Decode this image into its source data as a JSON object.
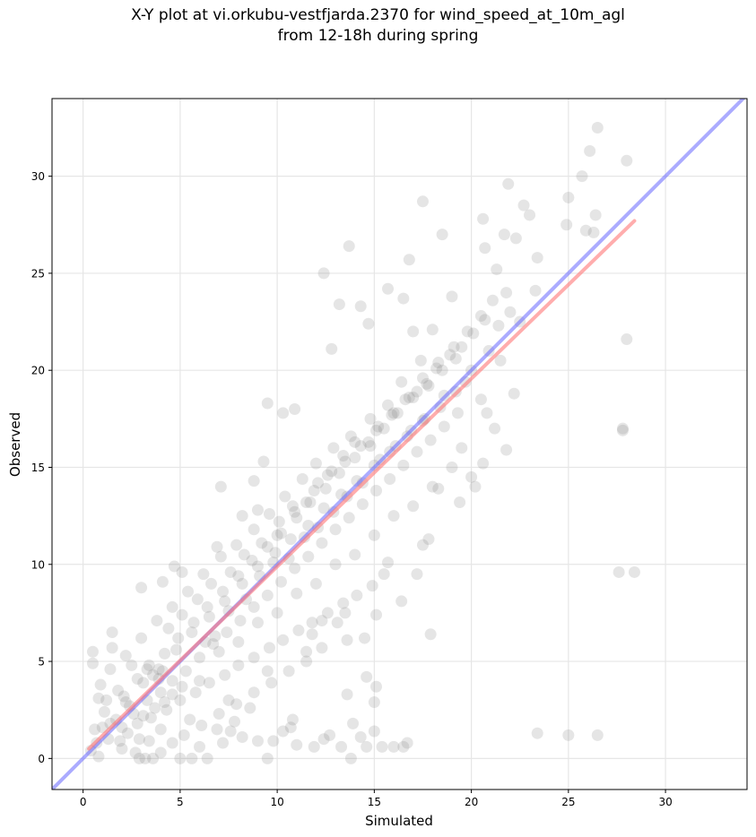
{
  "chart_data": {
    "type": "scatter",
    "title_lines": [
      "X-Y plot at vi.orkubu-vestfjarda.2370 for wind_speed_at_10m_agl",
      "from 12-18h during spring"
    ],
    "xlabel": "Simulated",
    "ylabel": "Observed",
    "xlim": [
      -1.6,
      34.2
    ],
    "ylim": [
      -1.6,
      34.0
    ],
    "xticks": [
      0,
      5,
      10,
      15,
      20,
      25,
      30
    ],
    "yticks": [
      0,
      5,
      10,
      15,
      20,
      25,
      30
    ],
    "grid": true,
    "legend": "none",
    "colors": {
      "points": "#7f7f7f",
      "identity_line": "#6666ff",
      "fit_line": "#ff7777"
    },
    "identity_line": {
      "slope": 1,
      "intercept": 0
    },
    "fit_line": {
      "x": [
        0.3,
        28.4
      ],
      "y": [
        0.5,
        27.7
      ]
    },
    "points": [
      [
        0.5,
        5.5
      ],
      [
        0.5,
        4.9
      ],
      [
        1.5,
        6.5
      ],
      [
        1.5,
        5.7
      ],
      [
        0.8,
        3.1
      ],
      [
        1.1,
        2.4
      ],
      [
        0.6,
        1.5
      ],
      [
        0.8,
        0.1
      ],
      [
        1.9,
        0.9
      ],
      [
        2.3,
        1.3
      ],
      [
        2.7,
        0.3
      ],
      [
        2.9,
        0.0
      ],
      [
        3.2,
        0.0
      ],
      [
        3.6,
        0.0
      ],
      [
        4.0,
        0.3
      ],
      [
        5.0,
        0.0
      ],
      [
        5.6,
        0.0
      ],
      [
        6.4,
        0.0
      ],
      [
        7.2,
        0.8
      ],
      [
        7.6,
        1.4
      ],
      [
        8.2,
        1.1
      ],
      [
        9.0,
        0.9
      ],
      [
        9.5,
        0.0
      ],
      [
        10.3,
        1.4
      ],
      [
        10.8,
        2.0
      ],
      [
        11.0,
        0.7
      ],
      [
        11.9,
        0.6
      ],
      [
        12.4,
        1.0
      ],
      [
        13.3,
        0.6
      ],
      [
        13.8,
        0.0
      ],
      [
        14.3,
        1.1
      ],
      [
        14.6,
        0.6
      ],
      [
        15.4,
        0.6
      ],
      [
        16.0,
        0.6
      ],
      [
        16.7,
        0.8
      ],
      [
        15.0,
        1.4
      ],
      [
        13.6,
        3.3
      ],
      [
        15.0,
        2.9
      ],
      [
        14.6,
        4.2
      ],
      [
        15.1,
        3.7
      ],
      [
        14.5,
        6.2
      ],
      [
        12.3,
        7.1
      ],
      [
        13.1,
        7.0
      ],
      [
        13.6,
        6.1
      ],
      [
        11.8,
        6.4
      ],
      [
        12.3,
        5.7
      ],
      [
        15.1,
        7.4
      ],
      [
        15.7,
        10.1
      ],
      [
        16.4,
        8.1
      ],
      [
        17.9,
        6.4
      ],
      [
        17.8,
        11.3
      ],
      [
        17.2,
        9.5
      ],
      [
        18.3,
        13.9
      ],
      [
        19.4,
        13.2
      ],
      [
        20.2,
        14.0
      ],
      [
        20.0,
        14.5
      ],
      [
        21.8,
        15.9
      ],
      [
        22.2,
        18.8
      ],
      [
        20.6,
        15.2
      ],
      [
        21.2,
        17.0
      ],
      [
        20.8,
        17.8
      ],
      [
        23.4,
        1.3
      ],
      [
        25.0,
        1.2
      ],
      [
        26.5,
        1.2
      ],
      [
        27.6,
        9.6
      ],
      [
        28.4,
        9.6
      ],
      [
        27.8,
        16.9
      ],
      [
        27.8,
        17.0
      ],
      [
        28.0,
        21.6
      ],
      [
        28.0,
        30.8
      ],
      [
        26.5,
        32.5
      ],
      [
        26.1,
        31.3
      ],
      [
        25.7,
        30.0
      ],
      [
        25.0,
        28.9
      ],
      [
        25.9,
        27.2
      ],
      [
        26.4,
        28.0
      ],
      [
        26.3,
        27.1
      ],
      [
        24.9,
        27.5
      ],
      [
        23.4,
        25.8
      ],
      [
        23.3,
        24.1
      ],
      [
        22.5,
        22.5
      ],
      [
        22.7,
        28.5
      ],
      [
        23.0,
        28.0
      ],
      [
        21.9,
        29.6
      ],
      [
        22.3,
        26.8
      ],
      [
        21.7,
        27.0
      ],
      [
        21.3,
        25.2
      ],
      [
        20.6,
        27.8
      ],
      [
        20.7,
        26.3
      ],
      [
        18.5,
        27.0
      ],
      [
        17.5,
        28.7
      ],
      [
        16.8,
        25.7
      ],
      [
        15.7,
        24.2
      ],
      [
        16.5,
        23.7
      ],
      [
        17.0,
        22.0
      ],
      [
        13.7,
        26.4
      ],
      [
        12.4,
        25.0
      ],
      [
        13.2,
        23.4
      ],
      [
        14.3,
        23.3
      ],
      [
        14.7,
        22.4
      ],
      [
        12.8,
        21.1
      ],
      [
        10.9,
        18.0
      ],
      [
        10.3,
        17.8
      ],
      [
        9.5,
        18.3
      ],
      [
        7.1,
        14.0
      ],
      [
        8.8,
        14.3
      ],
      [
        9.3,
        15.3
      ],
      [
        3.0,
        8.8
      ],
      [
        4.1,
        9.1
      ],
      [
        4.7,
        9.9
      ],
      [
        5.1,
        9.6
      ],
      [
        6.9,
        10.9
      ],
      [
        8.2,
        12.5
      ],
      [
        9.0,
        12.8
      ],
      [
        10.0,
        11.5
      ],
      [
        10.9,
        12.7
      ],
      [
        11.5,
        13.2
      ],
      [
        12.1,
        14.2
      ],
      [
        12.8,
        14.8
      ],
      [
        13.4,
        15.6
      ],
      [
        14.0,
        16.3
      ],
      [
        14.8,
        16.1
      ],
      [
        15.2,
        17.1
      ],
      [
        15.9,
        17.7
      ],
      [
        16.6,
        18.5
      ],
      [
        17.2,
        18.9
      ],
      [
        17.8,
        19.2
      ],
      [
        18.2,
        20.1
      ],
      [
        18.9,
        20.8
      ],
      [
        19.5,
        21.2
      ],
      [
        20.1,
        21.9
      ],
      [
        20.7,
        22.6
      ],
      [
        21.1,
        23.6
      ],
      [
        21.8,
        24.0
      ],
      [
        19.0,
        23.8
      ],
      [
        18.0,
        22.1
      ],
      [
        17.4,
        20.5
      ],
      [
        16.4,
        19.4
      ],
      [
        15.7,
        18.2
      ],
      [
        14.8,
        17.5
      ],
      [
        13.8,
        16.6
      ],
      [
        12.9,
        16.0
      ],
      [
        12.0,
        15.2
      ],
      [
        11.3,
        14.4
      ],
      [
        10.4,
        13.5
      ],
      [
        9.6,
        12.6
      ],
      [
        8.8,
        11.8
      ],
      [
        7.9,
        11.0
      ],
      [
        7.1,
        10.4
      ],
      [
        6.2,
        9.5
      ],
      [
        5.4,
        8.6
      ],
      [
        4.6,
        7.8
      ],
      [
        3.8,
        7.1
      ],
      [
        3.0,
        6.2
      ],
      [
        2.2,
        5.3
      ],
      [
        1.4,
        4.6
      ],
      [
        0.9,
        3.8
      ],
      [
        2.1,
        3.2
      ],
      [
        2.8,
        4.1
      ],
      [
        3.4,
        4.8
      ],
      [
        4.2,
        5.4
      ],
      [
        4.9,
        6.2
      ],
      [
        5.7,
        7.0
      ],
      [
        6.4,
        7.8
      ],
      [
        7.2,
        8.6
      ],
      [
        8.0,
        9.4
      ],
      [
        8.7,
        10.2
      ],
      [
        9.5,
        10.9
      ],
      [
        10.2,
        11.6
      ],
      [
        11.0,
        12.4
      ],
      [
        11.7,
        13.2
      ],
      [
        12.5,
        13.9
      ],
      [
        13.2,
        14.7
      ],
      [
        14.0,
        15.5
      ],
      [
        14.7,
        16.3
      ],
      [
        15.5,
        17.0
      ],
      [
        16.2,
        17.8
      ],
      [
        17.0,
        18.6
      ],
      [
        17.7,
        19.3
      ],
      [
        18.5,
        20.0
      ],
      [
        19.2,
        20.6
      ],
      [
        1.3,
        1.0
      ],
      [
        2.0,
        1.6
      ],
      [
        2.6,
        2.3
      ],
      [
        3.3,
        3.0
      ],
      [
        4.0,
        3.4
      ],
      [
        4.6,
        4.0
      ],
      [
        5.3,
        4.5
      ],
      [
        6.0,
        5.2
      ],
      [
        6.7,
        5.9
      ],
      [
        7.4,
        6.5
      ],
      [
        8.1,
        7.1
      ],
      [
        8.8,
        7.8
      ],
      [
        9.5,
        8.4
      ],
      [
        10.2,
        9.1
      ],
      [
        10.9,
        9.8
      ],
      [
        11.6,
        10.4
      ],
      [
        12.3,
        11.1
      ],
      [
        13.0,
        11.8
      ],
      [
        13.7,
        12.4
      ],
      [
        14.4,
        13.1
      ],
      [
        15.1,
        13.8
      ],
      [
        15.8,
        14.4
      ],
      [
        16.5,
        15.1
      ],
      [
        17.2,
        15.8
      ],
      [
        17.9,
        16.4
      ],
      [
        18.6,
        17.1
      ],
      [
        19.3,
        17.8
      ],
      [
        3.5,
        2.1
      ],
      [
        4.3,
        2.5
      ],
      [
        5.0,
        3.0
      ],
      [
        5.8,
        3.4
      ],
      [
        6.5,
        3.9
      ],
      [
        7.3,
        4.3
      ],
      [
        8.0,
        4.8
      ],
      [
        8.8,
        5.2
      ],
      [
        9.6,
        5.7
      ],
      [
        10.3,
        6.1
      ],
      [
        11.1,
        6.6
      ],
      [
        11.8,
        7.0
      ],
      [
        12.6,
        7.5
      ],
      [
        13.4,
        8.0
      ],
      [
        14.1,
        8.4
      ],
      [
        14.9,
        8.9
      ],
      [
        5.2,
        1.2
      ],
      [
        6.1,
        1.7
      ],
      [
        7.0,
        2.3
      ],
      [
        7.9,
        2.8
      ],
      [
        8.8,
        3.4
      ],
      [
        9.7,
        3.9
      ],
      [
        10.6,
        4.5
      ],
      [
        11.5,
        5.0
      ],
      [
        2.2,
        2.9
      ],
      [
        3.1,
        3.9
      ],
      [
        3.9,
        4.6
      ],
      [
        4.8,
        5.6
      ],
      [
        5.6,
        6.5
      ],
      [
        6.5,
        7.3
      ],
      [
        7.3,
        8.1
      ],
      [
        8.2,
        9.0
      ],
      [
        9.0,
        9.9
      ],
      [
        9.9,
        10.6
      ],
      [
        10.7,
        11.3
      ],
      [
        11.6,
        12.0
      ],
      [
        12.4,
        12.9
      ],
      [
        13.3,
        13.6
      ],
      [
        14.1,
        14.3
      ],
      [
        15.0,
        15.1
      ],
      [
        15.8,
        15.8
      ],
      [
        16.7,
        16.6
      ],
      [
        17.5,
        17.4
      ],
      [
        18.4,
        18.1
      ],
      [
        19.2,
        18.9
      ],
      [
        3.6,
        4.3
      ],
      [
        3.9,
        4.1
      ],
      [
        4.1,
        4.5
      ],
      [
        3.3,
        4.6
      ],
      [
        3.7,
        2.6
      ],
      [
        4.2,
        2.9
      ],
      [
        3.1,
        2.2
      ],
      [
        2.8,
        1.8
      ],
      [
        4.6,
        3.3
      ],
      [
        5.1,
        3.7
      ],
      [
        6.3,
        6.0
      ],
      [
        6.8,
        6.3
      ],
      [
        7.5,
        7.6
      ],
      [
        8.4,
        8.2
      ],
      [
        9.1,
        9.4
      ],
      [
        9.8,
        10.1
      ],
      [
        10.6,
        10.3
      ],
      [
        11.4,
        11.4
      ],
      [
        12.1,
        11.9
      ],
      [
        12.9,
        12.7
      ],
      [
        13.6,
        13.5
      ],
      [
        14.4,
        14.2
      ],
      [
        15.3,
        15.4
      ],
      [
        16.1,
        16.1
      ],
      [
        16.9,
        16.9
      ],
      [
        17.6,
        17.5
      ],
      [
        18.6,
        18.7
      ],
      [
        0.4,
        0.4
      ],
      [
        0.7,
        0.8
      ],
      [
        1.0,
        1.6
      ],
      [
        1.7,
        2.0
      ],
      [
        2.4,
        2.7
      ],
      [
        1.2,
        3.0
      ],
      [
        1.8,
        3.5
      ],
      [
        2.5,
        4.8
      ],
      [
        4.4,
        6.7
      ],
      [
        5.1,
        7.4
      ],
      [
        5.9,
        8.2
      ],
      [
        6.6,
        9.0
      ],
      [
        7.6,
        9.6
      ],
      [
        8.3,
        10.5
      ],
      [
        9.2,
        11.1
      ],
      [
        10.1,
        12.2
      ],
      [
        10.8,
        13.0
      ],
      [
        11.9,
        13.8
      ],
      [
        12.6,
        14.6
      ],
      [
        13.5,
        15.3
      ],
      [
        14.3,
        16.1
      ],
      [
        15.1,
        16.9
      ],
      [
        16.0,
        17.8
      ],
      [
        16.8,
        18.6
      ],
      [
        17.5,
        19.6
      ],
      [
        18.3,
        20.4
      ],
      [
        19.1,
        21.2
      ],
      [
        19.8,
        22.0
      ],
      [
        20.5,
        22.8
      ],
      [
        6.0,
        4.0
      ],
      [
        7.0,
        5.5
      ],
      [
        8.0,
        6.0
      ],
      [
        9.0,
        7.0
      ],
      [
        10.0,
        7.5
      ],
      [
        11.0,
        8.5
      ],
      [
        12.0,
        9.0
      ],
      [
        13.0,
        10.0
      ],
      [
        14.0,
        10.5
      ],
      [
        15.0,
        11.5
      ],
      [
        16.0,
        12.5
      ],
      [
        17.0,
        13.0
      ],
      [
        18.0,
        14.0
      ],
      [
        19.0,
        15.0
      ],
      [
        4.0,
        1.5
      ],
      [
        5.5,
        2.0
      ],
      [
        7.5,
        3.0
      ],
      [
        9.5,
        4.5
      ],
      [
        11.5,
        5.5
      ],
      [
        13.5,
        7.5
      ],
      [
        15.5,
        9.5
      ],
      [
        17.5,
        11.0
      ],
      [
        19.5,
        16.0
      ],
      [
        20.5,
        18.5
      ],
      [
        21.5,
        20.5
      ],
      [
        20.0,
        20.0
      ],
      [
        19.7,
        19.4
      ],
      [
        20.9,
        21.0
      ],
      [
        21.4,
        22.3
      ],
      [
        22.0,
        23.0
      ],
      [
        9.8,
        0.9
      ],
      [
        10.7,
        1.6
      ],
      [
        12.7,
        1.2
      ],
      [
        13.9,
        1.8
      ],
      [
        16.5,
        0.6
      ],
      [
        7.8,
        1.9
      ],
      [
        6.9,
        1.5
      ],
      [
        8.6,
        2.6
      ],
      [
        3.4,
        0.9
      ],
      [
        4.6,
        0.8
      ],
      [
        6.0,
        0.6
      ],
      [
        2.0,
        0.5
      ],
      [
        1.4,
        1.8
      ],
      [
        2.9,
        1.0
      ]
    ]
  }
}
